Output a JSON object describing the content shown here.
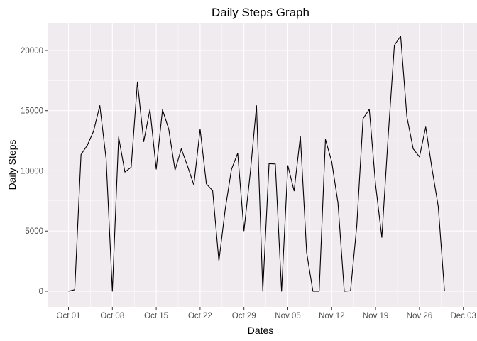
{
  "chart_data": {
    "type": "line",
    "title": "Daily Steps Graph",
    "xlabel": "Dates",
    "ylabel": "Daily Steps",
    "x_ticks": [
      "Oct 01",
      "Oct 08",
      "Oct 15",
      "Oct 22",
      "Oct 29",
      "Nov 05",
      "Nov 12",
      "Nov 19",
      "Nov 26",
      "Dec 03"
    ],
    "y_ticks": [
      0,
      5000,
      10000,
      15000,
      20000
    ],
    "ylim": [
      -1300,
      22300
    ],
    "xlim": [
      "2012-09-28",
      "2012-12-03"
    ],
    "grid": true,
    "colors": {
      "panel": "#efebef",
      "grid": "#ffffff",
      "line": "#000000"
    },
    "series": [
      {
        "x": [
          "2012-10-01",
          "2012-10-02",
          "2012-10-03",
          "2012-10-04",
          "2012-10-05",
          "2012-10-06",
          "2012-10-07",
          "2012-10-08",
          "2012-10-09",
          "2012-10-10",
          "2012-10-11",
          "2012-10-12",
          "2012-10-13",
          "2012-10-14",
          "2012-10-15",
          "2012-10-16",
          "2012-10-17",
          "2012-10-18",
          "2012-10-19",
          "2012-10-20",
          "2012-10-21",
          "2012-10-22",
          "2012-10-23",
          "2012-10-24",
          "2012-10-25",
          "2012-10-26",
          "2012-10-27",
          "2012-10-28",
          "2012-10-29",
          "2012-10-30",
          "2012-10-31",
          "2012-11-01",
          "2012-11-02",
          "2012-11-03",
          "2012-11-04",
          "2012-11-05",
          "2012-11-06",
          "2012-11-07",
          "2012-11-08",
          "2012-11-09",
          "2012-11-10",
          "2012-11-11",
          "2012-11-12",
          "2012-11-13",
          "2012-11-14",
          "2012-11-15",
          "2012-11-16",
          "2012-11-17",
          "2012-11-18",
          "2012-11-19",
          "2012-11-20",
          "2012-11-21",
          "2012-11-22",
          "2012-11-23",
          "2012-11-24",
          "2012-11-25",
          "2012-11-26",
          "2012-11-27",
          "2012-11-28",
          "2012-11-29",
          "2012-11-30"
        ],
        "values": [
          0,
          126,
          11352,
          12116,
          13294,
          15420,
          11015,
          0,
          12811,
          9900,
          10304,
          17382,
          12426,
          15098,
          10139,
          15084,
          13452,
          10056,
          11829,
          10395,
          8821,
          13460,
          8918,
          8355,
          2492,
          6778,
          10119,
          11458,
          5018,
          9819,
          15414,
          0,
          10600,
          10571,
          0,
          10439,
          8334,
          12883,
          3219,
          0,
          0,
          12608,
          10765,
          7336,
          0,
          41,
          5441,
          14339,
          15110,
          8841,
          4472,
          12787,
          20427,
          21194,
          14478,
          11834,
          11162,
          13646,
          10183,
          7047,
          0
        ]
      }
    ]
  }
}
